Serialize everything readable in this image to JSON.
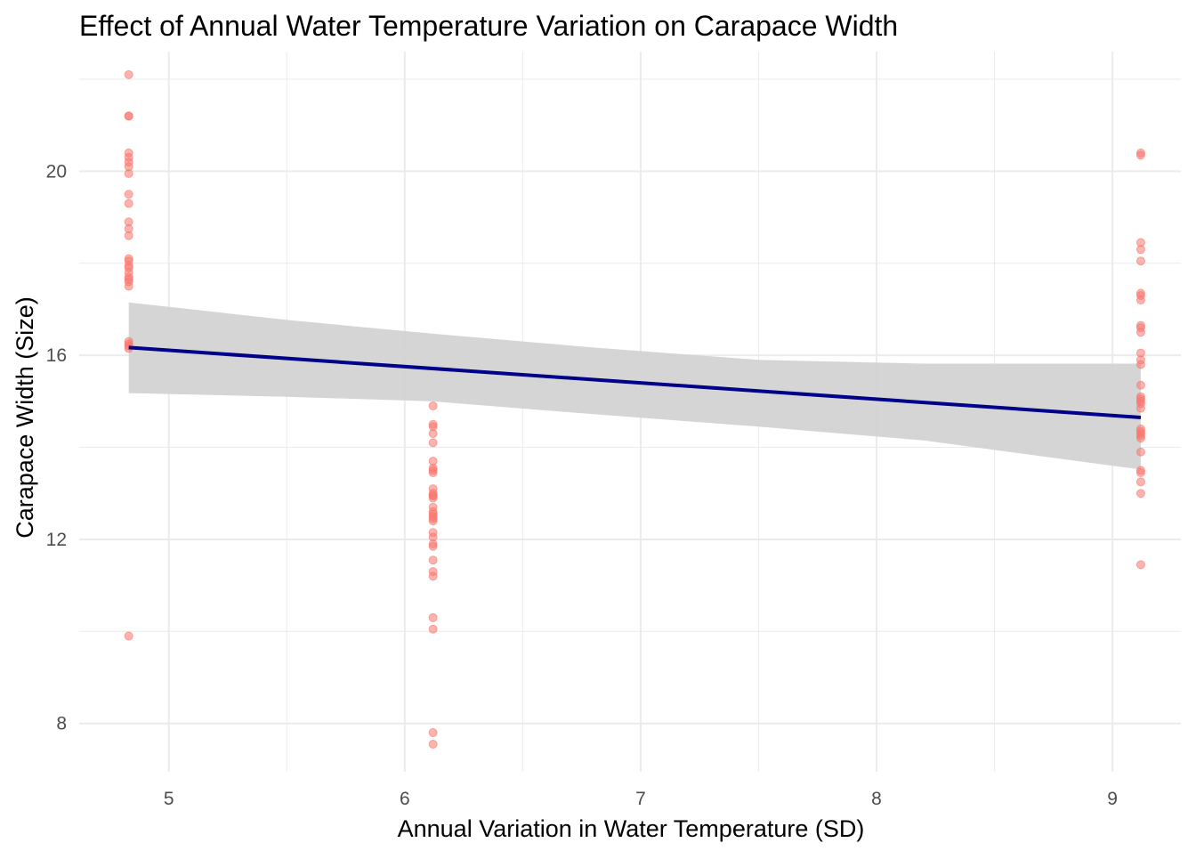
{
  "chart_data": {
    "type": "scatter",
    "title": "Effect of Annual Water Temperature Variation on Carapace Width",
    "xlabel": "Annual Variation in Water Temperature (SD)",
    "ylabel": "Carapace Width (Size)",
    "xlim": [
      4.62,
      9.29
    ],
    "ylim": [
      6.95,
      22.6
    ],
    "x_ticks": [
      5,
      6,
      7,
      8,
      9
    ],
    "x_tick_labels": [
      "5",
      "6",
      "7",
      "8",
      "9"
    ],
    "y_ticks": [
      8,
      12,
      16,
      20
    ],
    "y_tick_labels": [
      "8",
      "12",
      "16",
      "20"
    ],
    "grid": true,
    "legend": "none",
    "colors": {
      "points": "#f8766d",
      "fit_line": "#00008b",
      "confidence_band": "#d3d3d3",
      "grid": "#ebebeb"
    },
    "series": [
      {
        "x": [
          4.83,
          4.83,
          4.83,
          4.83,
          4.83,
          4.83,
          4.83,
          4.83,
          4.83,
          4.83,
          4.83,
          4.83,
          4.83,
          4.83,
          4.83,
          4.83,
          4.83,
          4.83,
          4.83,
          4.83,
          4.83,
          4.83,
          4.83,
          4.83,
          4.83,
          4.83,
          4.83
        ],
        "y": [
          22.1,
          21.2,
          21.2,
          20.4,
          20.3,
          20.2,
          20.1,
          19.95,
          19.5,
          19.3,
          18.9,
          18.75,
          18.6,
          18.1,
          18.05,
          17.95,
          17.9,
          17.8,
          17.7,
          17.65,
          17.6,
          17.5,
          16.3,
          16.25,
          16.2,
          16.15,
          9.9
        ]
      },
      {
        "x": [
          6.12,
          6.12,
          6.12,
          6.12,
          6.12,
          6.12,
          6.12,
          6.12,
          6.12,
          6.12,
          6.12,
          6.12,
          6.12,
          6.12,
          6.12,
          6.12,
          6.12,
          6.12,
          6.12,
          6.12,
          6.12,
          6.12,
          6.12,
          6.12,
          6.12,
          6.12,
          6.12,
          6.12,
          6.12,
          6.12,
          6.12
        ],
        "y": [
          14.9,
          14.5,
          14.45,
          14.3,
          14.1,
          13.7,
          13.5,
          13.45,
          13.1,
          13.0,
          12.95,
          12.9,
          12.7,
          12.6,
          12.5,
          12.45,
          12.4,
          12.15,
          12.05,
          11.9,
          11.85,
          11.55,
          11.3,
          11.2,
          10.3,
          10.05,
          7.8,
          7.55,
          12.55,
          12.95,
          13.55
        ]
      },
      {
        "x": [
          9.12,
          9.12,
          9.12,
          9.12,
          9.12,
          9.12,
          9.12,
          9.12,
          9.12,
          9.12,
          9.12,
          9.12,
          9.12,
          9.12,
          9.12,
          9.12,
          9.12,
          9.12,
          9.12,
          9.12,
          9.12,
          9.12,
          9.12,
          9.12,
          9.12,
          9.12,
          9.12,
          9.12,
          9.12,
          9.12,
          9.12
        ],
        "y": [
          20.4,
          20.35,
          18.45,
          18.3,
          18.05,
          17.35,
          17.3,
          17.2,
          16.65,
          16.6,
          16.05,
          15.9,
          15.8,
          15.35,
          15.1,
          15.0,
          14.95,
          14.85,
          14.35,
          14.3,
          14.25,
          14.2,
          13.9,
          13.5,
          13.45,
          13.25,
          13.0,
          11.45,
          14.4,
          15.05,
          16.5
        ]
      }
    ],
    "fit_line": {
      "x": [
        4.83,
        9.12
      ],
      "y": [
        16.17,
        14.65
      ]
    },
    "confidence_band": {
      "x": [
        4.83,
        5.5,
        6.12,
        6.8,
        7.5,
        8.2,
        9.12
      ],
      "lower": [
        15.18,
        15.1,
        15.0,
        14.72,
        14.45,
        14.15,
        13.52
      ],
      "upper": [
        17.15,
        16.77,
        16.47,
        16.17,
        15.9,
        15.82,
        15.82
      ]
    }
  }
}
